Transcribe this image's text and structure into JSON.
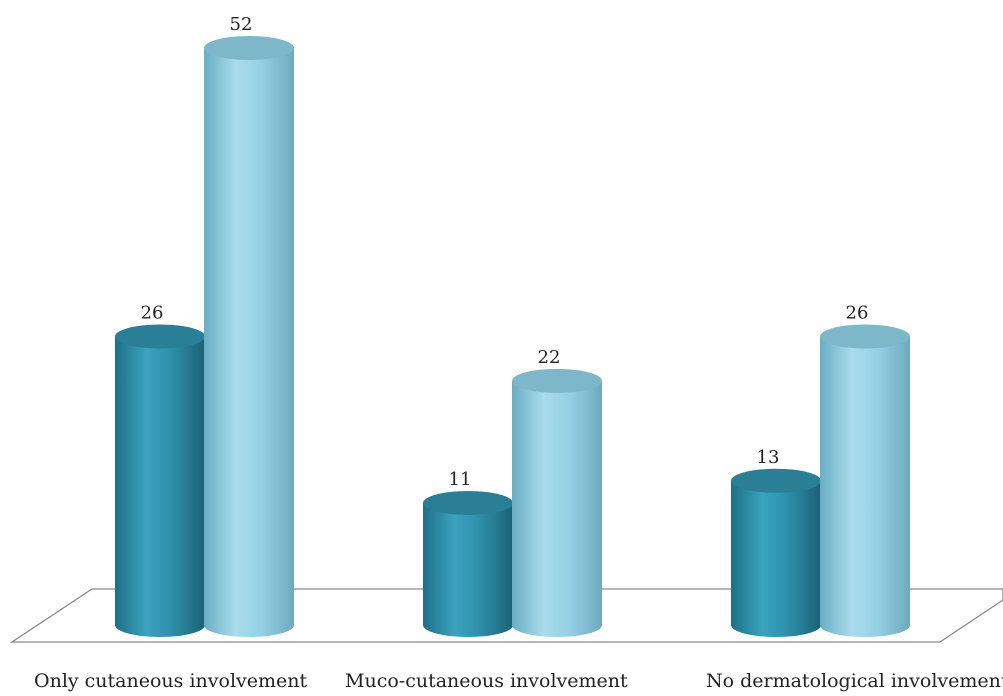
{
  "chart_data": {
    "type": "bar",
    "categories": [
      "Only cutaneous involvement",
      "Muco-cutaneous involvement",
      "No dermatological involvement"
    ],
    "series": [
      {
        "values": [
          26,
          11,
          13
        ],
        "color": "#2e8fa8"
      },
      {
        "values": [
          52,
          22,
          26
        ],
        "color": "#8ccde2"
      }
    ],
    "data_labels": [
      [
        "26",
        "11",
        "13"
      ],
      [
        "52",
        "22",
        "26"
      ]
    ],
    "ylim": [
      0,
      52
    ],
    "title": "",
    "xlabel": "",
    "ylabel": "",
    "grid": false,
    "legend": "none",
    "style": "3d-cylinder"
  }
}
